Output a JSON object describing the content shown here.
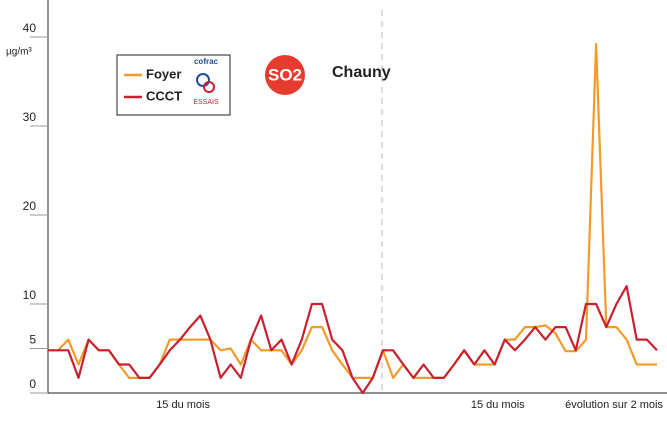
{
  "chart_data": {
    "type": "line",
    "title": "Chauny",
    "pollutant": "SO2",
    "y_axis_label": "µg/m³",
    "annotation": "évolution sur 2 mois",
    "logo": {
      "top": "cofrac",
      "bottom": "ESSAIS"
    },
    "ylim": [
      0,
      40
    ],
    "yticks": [
      0,
      5,
      10,
      20,
      30,
      40
    ],
    "categories": [
      null,
      null,
      null,
      null,
      null,
      null,
      null,
      null,
      null,
      null,
      null,
      null,
      null,
      null,
      "15 du mois",
      null,
      null,
      null,
      null,
      null,
      null,
      null,
      null,
      null,
      null,
      null,
      null,
      null,
      null,
      null,
      null,
      null,
      null,
      null,
      null,
      null,
      null,
      null,
      null,
      null,
      null,
      null,
      null,
      null,
      null,
      "15 du mois",
      null,
      null,
      null,
      null,
      null,
      null,
      null,
      null,
      null,
      null,
      null,
      null,
      null,
      null,
      null
    ],
    "legend": "top-left",
    "series": [
      {
        "name": "Foyer",
        "color": "#f39a2b",
        "values": [
          4.8,
          4.8,
          6,
          3.2,
          6,
          4.8,
          4.8,
          3.2,
          1.7,
          1.7,
          1.7,
          3.2,
          6,
          6,
          6,
          6,
          6,
          4.8,
          5,
          3.2,
          6,
          4.8,
          4.8,
          4.8,
          3.2,
          4.8,
          7.4,
          7.4,
          4.8,
          3.2,
          1.7,
          1.7,
          1.7,
          4.8,
          1.7,
          3.2,
          1.7,
          1.7,
          1.7,
          1.7,
          3.2,
          4.8,
          3.2,
          3.2,
          3.2,
          6,
          6,
          7.4,
          7.4,
          7.6,
          6.7,
          4.7,
          4.7,
          6,
          39.2,
          7.4,
          7.4,
          6,
          3.2,
          3.2,
          3.2
        ]
      },
      {
        "name": "CCCT",
        "color": "#c8202f",
        "values": [
          4.8,
          4.8,
          4.8,
          1.7,
          6,
          4.8,
          4.8,
          3.2,
          3.2,
          1.7,
          1.7,
          3.2,
          4.8,
          6,
          7.4,
          8.7,
          6,
          1.7,
          3.2,
          1.7,
          6,
          8.7,
          4.8,
          6,
          3.2,
          6,
          10,
          10,
          6,
          4.8,
          1.7,
          0,
          1.7,
          4.8,
          4.8,
          3.2,
          1.7,
          3.2,
          1.7,
          1.7,
          3.2,
          4.8,
          3.2,
          4.8,
          3.2,
          6,
          4.8,
          6,
          7.4,
          6,
          7.4,
          7.4,
          4.8,
          10,
          10,
          7.4,
          10,
          12,
          6,
          6,
          4.8
        ]
      }
    ]
  }
}
